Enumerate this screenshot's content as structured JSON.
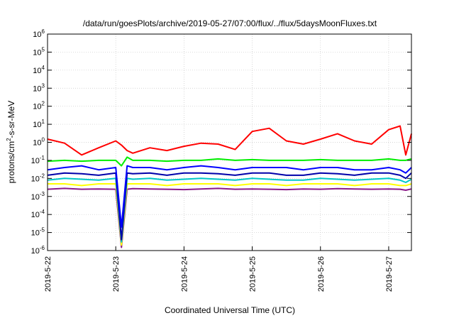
{
  "chart_data": {
    "type": "line",
    "title": "/data/run/goesPlots/archive/2019-05-27/07:00/flux/../flux/5daysMoonFluxes.txt",
    "xlabel": "Coordinated Universal Time (UTC)",
    "ylabel": "protons/cm2-s-sr-MeV",
    "ylabel_parts": {
      "a": "protons/cm",
      "b": "2",
      "c": "-s-sr-MeV"
    },
    "yscale": "log",
    "ylim": [
      1e-06,
      1000000.0
    ],
    "xlim": [
      "2019-05-22",
      "2019-05-27 08:00"
    ],
    "grid": true,
    "ytick_labels": [
      {
        "exp": "-6",
        "value": 1e-06
      },
      {
        "exp": "-5",
        "value": 1e-05
      },
      {
        "exp": "-4",
        "value": 0.0001
      },
      {
        "exp": "-3",
        "value": 0.001
      },
      {
        "exp": "-2",
        "value": 0.01
      },
      {
        "exp": "-1",
        "value": 0.1
      },
      {
        "exp": "0",
        "value": 1
      },
      {
        "exp": "1",
        "value": 10
      },
      {
        "exp": "2",
        "value": 100
      },
      {
        "exp": "3",
        "value": 1000
      },
      {
        "exp": "4",
        "value": 10000.0
      },
      {
        "exp": "5",
        "value": 100000.0
      },
      {
        "exp": "6",
        "value": 1000000.0
      }
    ],
    "xtick_labels": [
      "2019-5-22",
      "2019-5-23",
      "2019-5-24",
      "2019-5-25",
      "2019-5-26",
      "2019-5-27"
    ],
    "x": [
      "2019-05-22 00:00",
      "2019-05-22 06:00",
      "2019-05-22 12:00",
      "2019-05-22 18:00",
      "2019-05-23 00:00",
      "2019-05-23 02:00",
      "2019-05-23 04:00",
      "2019-05-23 06:00",
      "2019-05-23 12:00",
      "2019-05-23 18:00",
      "2019-05-24 00:00",
      "2019-05-24 06:00",
      "2019-05-24 12:00",
      "2019-05-24 18:00",
      "2019-05-25 00:00",
      "2019-05-25 06:00",
      "2019-05-25 12:00",
      "2019-05-25 18:00",
      "2019-05-26 00:00",
      "2019-05-26 06:00",
      "2019-05-26 12:00",
      "2019-05-26 18:00",
      "2019-05-27 00:00",
      "2019-05-27 04:00",
      "2019-05-27 06:00",
      "2019-05-27 08:00"
    ],
    "series": [
      {
        "color": "#ff0000",
        "values": [
          1.5,
          0.9,
          0.2,
          0.5,
          1.2,
          0.7,
          0.35,
          0.25,
          0.5,
          0.35,
          0.6,
          0.9,
          0.8,
          0.4,
          4,
          6,
          1.2,
          0.8,
          1.5,
          3,
          1.2,
          0.8,
          5,
          8,
          0.2,
          3
        ]
      },
      {
        "color": "#00ee00",
        "values": [
          0.09,
          0.1,
          0.09,
          0.1,
          0.1,
          0.05,
          0.15,
          0.1,
          0.1,
          0.09,
          0.1,
          0.1,
          0.12,
          0.1,
          0.11,
          0.1,
          0.1,
          0.1,
          0.11,
          0.1,
          0.1,
          0.1,
          0.12,
          0.1,
          0.1,
          0.12
        ]
      },
      {
        "color": "#0000ff",
        "values": [
          0.03,
          0.04,
          0.05,
          0.03,
          0.04,
          2e-05,
          0.05,
          0.04,
          0.04,
          0.03,
          0.04,
          0.05,
          0.04,
          0.03,
          0.04,
          0.04,
          0.04,
          0.03,
          0.04,
          0.04,
          0.03,
          0.03,
          0.04,
          0.03,
          0.02,
          0.04
        ]
      },
      {
        "color": "#0000aa",
        "values": [
          0.015,
          0.02,
          0.018,
          0.015,
          0.02,
          4e-06,
          0.02,
          0.018,
          0.02,
          0.015,
          0.02,
          0.02,
          0.018,
          0.015,
          0.02,
          0.02,
          0.015,
          0.015,
          0.02,
          0.018,
          0.015,
          0.02,
          0.02,
          0.015,
          0.01,
          0.02
        ]
      },
      {
        "color": "#00c8c8",
        "values": [
          0.008,
          0.01,
          0.009,
          0.008,
          0.01,
          3e-06,
          0.01,
          0.009,
          0.01,
          0.008,
          0.009,
          0.01,
          0.009,
          0.008,
          0.01,
          0.009,
          0.008,
          0.008,
          0.01,
          0.009,
          0.008,
          0.009,
          0.01,
          0.008,
          0.006,
          0.009
        ]
      },
      {
        "color": "#ffff00",
        "values": [
          0.005,
          0.005,
          0.004,
          0.005,
          0.005,
          2e-06,
          0.005,
          0.005,
          0.005,
          0.004,
          0.005,
          0.005,
          0.005,
          0.004,
          0.005,
          0.005,
          0.004,
          0.005,
          0.005,
          0.005,
          0.004,
          0.005,
          0.005,
          0.004,
          0.004,
          0.005
        ]
      },
      {
        "color": "#8b1a89",
        "values": [
          0.0025,
          0.0028,
          0.0025,
          0.0026,
          0.0025,
          1.5e-06,
          0.0025,
          0.0027,
          0.0026,
          0.0025,
          0.0024,
          0.0026,
          0.0028,
          0.0025,
          0.0026,
          0.0025,
          0.0024,
          0.0026,
          0.0025,
          0.0027,
          0.0026,
          0.0025,
          0.0026,
          0.0025,
          0.0022,
          0.0026
        ]
      }
    ]
  }
}
